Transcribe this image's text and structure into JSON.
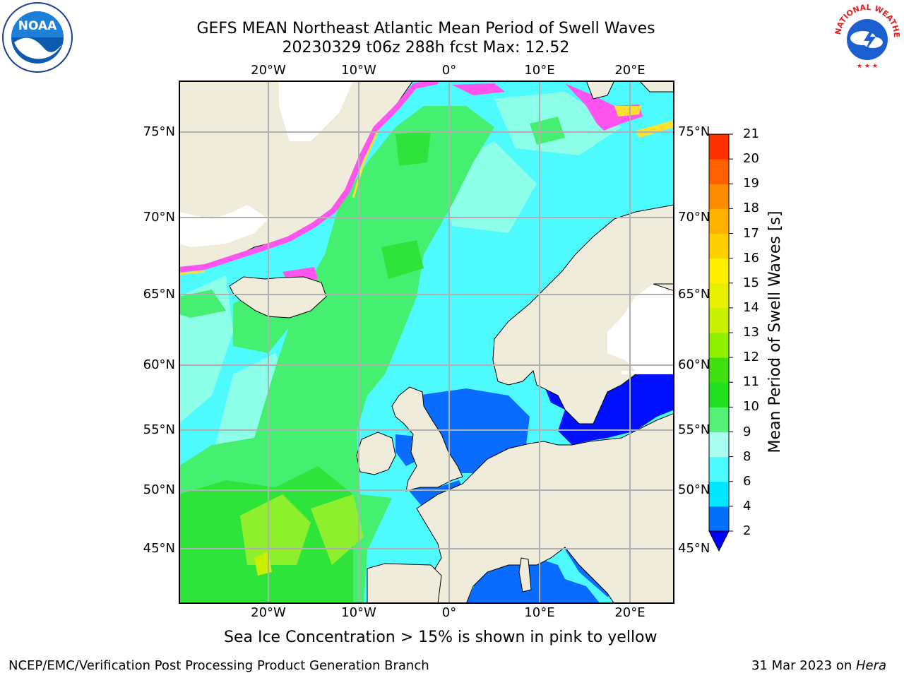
{
  "title": {
    "line1": "GEFS MEAN Northeast Atlantic Mean Period of Swell Waves",
    "line2": "20230329 t06z 288h fcst   Max: 12.52"
  },
  "map": {
    "lon_labels": [
      "20°W",
      "10°W",
      "0°",
      "10°E",
      "20°E"
    ],
    "lat_labels": [
      "75°N",
      "70°N",
      "65°N",
      "60°N",
      "55°N",
      "50°N",
      "45°N"
    ],
    "colors": {
      "land": "#efecdb",
      "ocean_low": "#4dfbff",
      "ocean_mid": "#8dffe9",
      "ocean_green": "#45f070",
      "ocean_dark_green": "#20e020",
      "ocean_yellow_green": "#a8ff2a",
      "shelf_blue": "#0a6cff",
      "baltic_blue": "#0010ff",
      "ice_pink": "#ff55ee",
      "ice_yellow": "#ffe030",
      "grid": "#b0b0b0"
    }
  },
  "colorbar": {
    "label": "Mean Period of Swell Waves [s]",
    "ticks": [
      "2",
      "4",
      "6",
      "8",
      "9",
      "10",
      "11",
      "12",
      "13",
      "14",
      "15",
      "16",
      "17",
      "18",
      "19",
      "20",
      "21"
    ],
    "colors": [
      "#0070ff",
      "#00e6ff",
      "#4dfbff",
      "#a8fff0",
      "#55f078",
      "#20e020",
      "#40e010",
      "#8ff000",
      "#c8f000",
      "#e6f000",
      "#ffee00",
      "#ffd000",
      "#ffb000",
      "#ff8c00",
      "#ff6000",
      "#ff3000",
      "#ff0000"
    ],
    "under_color": "#0000ff"
  },
  "note": "Sea Ice Concentration > 15% is shown in pink to yellow",
  "footer": {
    "left": "NCEP/EMC/Verification Post Processing Product Generation Branch",
    "date": "31 Mar 2023 on ",
    "machine": "Hera"
  },
  "logos": {
    "left": "NOAA",
    "right_arc": "NATIONAL WEATHER SERVICE"
  }
}
